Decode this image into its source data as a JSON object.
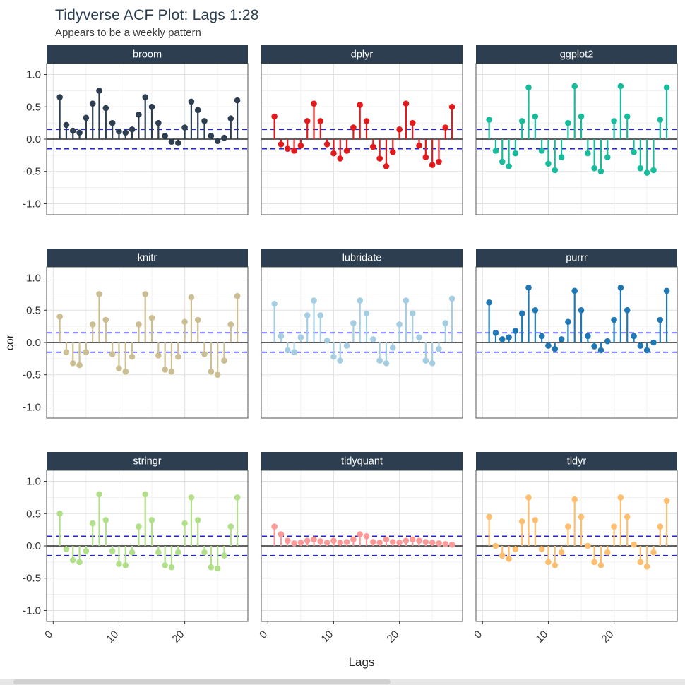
{
  "header": {
    "title": "Tidyverse ACF Plot: Lags 1:28",
    "subtitle": "Appears to be a weekly pattern"
  },
  "axes": {
    "x_title": "Lags",
    "y_title": "cor",
    "y_tick_labels": [
      "1.0",
      "0.5",
      "0.0",
      "-0.5",
      "-1.0"
    ],
    "y_tick_values": [
      1,
      0.5,
      0,
      -0.5,
      -1
    ],
    "x_tick_labels": [
      "0",
      "10",
      "20"
    ],
    "x_tick_values": [
      0,
      10,
      20
    ]
  },
  "style": {
    "strip_bg": "#2c3e50",
    "strip_text": "#ffffff",
    "panel_bg": "#ffffff",
    "panel_border": "#555555",
    "grid_major": "#e2e2e2",
    "grid_minor": "#f1f1f1",
    "zero_line": "#000000",
    "conf_line": "#2626cc",
    "title_color": "#2c3e50",
    "subtitle_color": "#3b3b3b",
    "tick_label_color": "#333333",
    "scrollbar_track": "#e6e6e6",
    "scrollbar_thumb": "#d0d0d0"
  },
  "chart_data": {
    "type": "stem",
    "title": "Tidyverse ACF Plot: Lags 1:28",
    "subtitle": "Appears to be a weekly pattern",
    "xlabel": "Lags",
    "ylabel": "cor",
    "ylim": [
      -1,
      1
    ],
    "x_ticks": [
      0,
      10,
      20
    ],
    "y_ticks": [
      -1,
      -0.5,
      0,
      0.5,
      1
    ],
    "conf_bounds": {
      "upper": 0.15,
      "lower": -0.15
    },
    "x": [
      1,
      2,
      3,
      4,
      5,
      6,
      7,
      8,
      9,
      10,
      11,
      12,
      13,
      14,
      15,
      16,
      17,
      18,
      19,
      20,
      21,
      22,
      23,
      24,
      25,
      26,
      27,
      28
    ],
    "facets": [
      {
        "name": "broom",
        "color": "#2c3e50",
        "values": [
          0.65,
          0.22,
          0.13,
          0.1,
          0.33,
          0.55,
          0.75,
          0.48,
          0.25,
          0.12,
          0.1,
          0.15,
          0.38,
          0.65,
          0.5,
          0.25,
          0.05,
          -0.04,
          -0.06,
          0.18,
          0.58,
          0.45,
          0.28,
          0.05,
          -0.03,
          0.02,
          0.32,
          0.6
        ]
      },
      {
        "name": "dplyr",
        "color": "#e31a1c",
        "values": [
          0.35,
          -0.08,
          -0.15,
          -0.18,
          -0.1,
          0.28,
          0.55,
          0.28,
          -0.08,
          -0.22,
          -0.3,
          -0.18,
          0.18,
          0.53,
          0.28,
          -0.12,
          -0.3,
          -0.42,
          -0.2,
          0.15,
          0.55,
          0.25,
          -0.1,
          -0.28,
          -0.4,
          -0.35,
          0.18,
          0.5
        ]
      },
      {
        "name": "ggplot2",
        "color": "#18BC9C",
        "values": [
          0.3,
          -0.18,
          -0.35,
          -0.42,
          -0.22,
          0.28,
          0.8,
          0.35,
          -0.18,
          -0.38,
          -0.48,
          -0.28,
          0.25,
          0.82,
          0.35,
          -0.22,
          -0.45,
          -0.5,
          -0.28,
          0.28,
          0.82,
          0.35,
          -0.2,
          -0.45,
          -0.52,
          -0.48,
          0.3,
          0.8
        ]
      },
      {
        "name": "knitr",
        "color": "#CCBE93",
        "values": [
          0.4,
          -0.15,
          -0.32,
          -0.35,
          -0.15,
          0.28,
          0.75,
          0.35,
          -0.18,
          -0.4,
          -0.45,
          -0.22,
          0.28,
          0.75,
          0.38,
          -0.2,
          -0.42,
          -0.45,
          -0.22,
          0.32,
          0.7,
          0.35,
          -0.18,
          -0.45,
          -0.5,
          -0.28,
          0.28,
          0.72
        ]
      },
      {
        "name": "lubridate",
        "color": "#A6CEE3",
        "values": [
          0.6,
          0.1,
          -0.12,
          -0.15,
          0.08,
          0.42,
          0.65,
          0.42,
          0.03,
          -0.22,
          -0.28,
          -0.05,
          0.3,
          0.65,
          0.45,
          0.05,
          -0.28,
          -0.32,
          -0.08,
          0.28,
          0.65,
          0.45,
          0.08,
          -0.28,
          -0.32,
          -0.1,
          0.3,
          0.68
        ]
      },
      {
        "name": "purrr",
        "color": "#1F78B4",
        "values": [
          0.62,
          0.15,
          0.05,
          0.08,
          0.18,
          0.45,
          0.85,
          0.5,
          0.1,
          -0.05,
          -0.1,
          0.05,
          0.32,
          0.8,
          0.5,
          0.1,
          -0.06,
          -0.12,
          0.02,
          0.35,
          0.85,
          0.5,
          0.1,
          -0.05,
          -0.12,
          0.0,
          0.35,
          0.8
        ]
      },
      {
        "name": "stringr",
        "color": "#B2DF8A",
        "values": [
          0.5,
          -0.05,
          -0.22,
          -0.25,
          -0.08,
          0.35,
          0.8,
          0.4,
          -0.08,
          -0.28,
          -0.3,
          -0.1,
          0.3,
          0.8,
          0.4,
          -0.1,
          -0.3,
          -0.33,
          -0.1,
          0.35,
          0.75,
          0.4,
          -0.1,
          -0.33,
          -0.35,
          -0.15,
          0.3,
          0.75
        ]
      },
      {
        "name": "tidyquant",
        "color": "#FB9A99",
        "values": [
          0.3,
          0.18,
          0.08,
          0.04,
          0.05,
          0.08,
          0.1,
          0.07,
          0.05,
          0.08,
          0.05,
          0.06,
          0.1,
          0.18,
          0.15,
          0.06,
          0.05,
          0.1,
          0.06,
          0.05,
          0.08,
          0.1,
          0.08,
          0.06,
          0.05,
          0.04,
          0.03,
          0.02
        ]
      },
      {
        "name": "tidyr",
        "color": "#FDBF6F",
        "values": [
          0.45,
          0.0,
          -0.15,
          -0.2,
          -0.05,
          0.38,
          0.75,
          0.4,
          -0.05,
          -0.25,
          -0.3,
          -0.1,
          0.3,
          0.72,
          0.45,
          0.0,
          -0.25,
          -0.3,
          -0.1,
          0.3,
          0.75,
          0.45,
          0.02,
          -0.25,
          -0.32,
          -0.1,
          0.3,
          0.7
        ]
      }
    ]
  }
}
